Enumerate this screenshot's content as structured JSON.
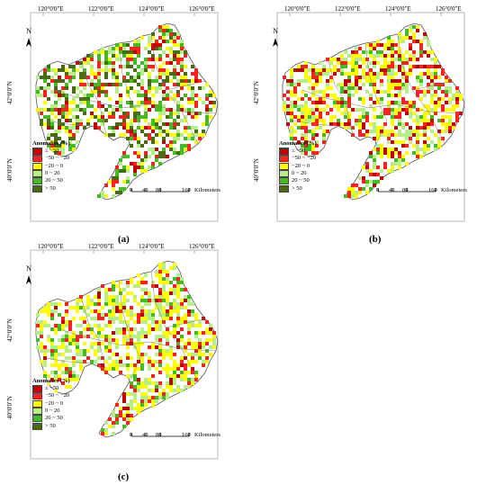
{
  "figure": {
    "longitude_labels": [
      "120°0'0\"E",
      "122°0'0\"E",
      "124°0'0\"E",
      "126°0'0\"E"
    ],
    "latitude_labels": [
      "42°0'0\"N",
      "40°0'0\"N"
    ],
    "north_label": "N",
    "legend": {
      "title": "Anomalies (%)",
      "classes": [
        {
          "label": "≤ −50",
          "color": "#c00000"
        },
        {
          "label": "−50 ~ −20",
          "color": "#ff2020"
        },
        {
          "label": "−20 ~ 0",
          "color": "#ffff00"
        },
        {
          "label": "0 ~ 20",
          "color": "#b8ee8a"
        },
        {
          "label": "20 ~ 50",
          "color": "#44bb22"
        },
        {
          "label": "> 50",
          "color": "#4a6b12"
        }
      ]
    },
    "scale_bar": {
      "ticks": [
        "0",
        "40",
        "80",
        "160"
      ],
      "unit": "Kilometers"
    },
    "panels": [
      {
        "label": "(a)",
        "mix": [
          0.06,
          0.16,
          0.17,
          0.2,
          0.16,
          0.25
        ]
      },
      {
        "label": "(b)",
        "mix": [
          0.14,
          0.2,
          0.34,
          0.22,
          0.1,
          0.0
        ]
      },
      {
        "label": "(c)",
        "mix": [
          0.06,
          0.16,
          0.42,
          0.26,
          0.1,
          0.0
        ]
      }
    ]
  }
}
